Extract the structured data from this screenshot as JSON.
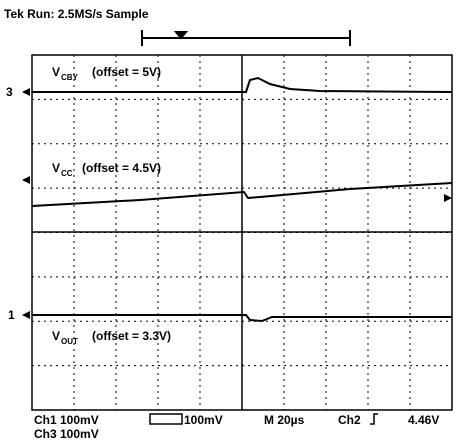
{
  "header": {
    "title": "Tek Run: 2.5MS/s Sample"
  },
  "traces": [
    {
      "marker": "3",
      "label": "V",
      "sub": "CBY",
      "offset": "(offset = 5V)"
    },
    {
      "label": "V",
      "sub": "CC",
      "offset": "(offset = 4.5V)"
    },
    {
      "marker": "1",
      "label": "V",
      "sub": "OUT",
      "offset": "(offset = 3.3V)"
    }
  ],
  "footer": {
    "ch1": "Ch1 100mV",
    "ch2scale": "100mV",
    "timebase": "M 20µs",
    "trigger": "Ch2",
    "trigger_level": "4.46V",
    "ch3": "Ch3 100mV"
  }
}
